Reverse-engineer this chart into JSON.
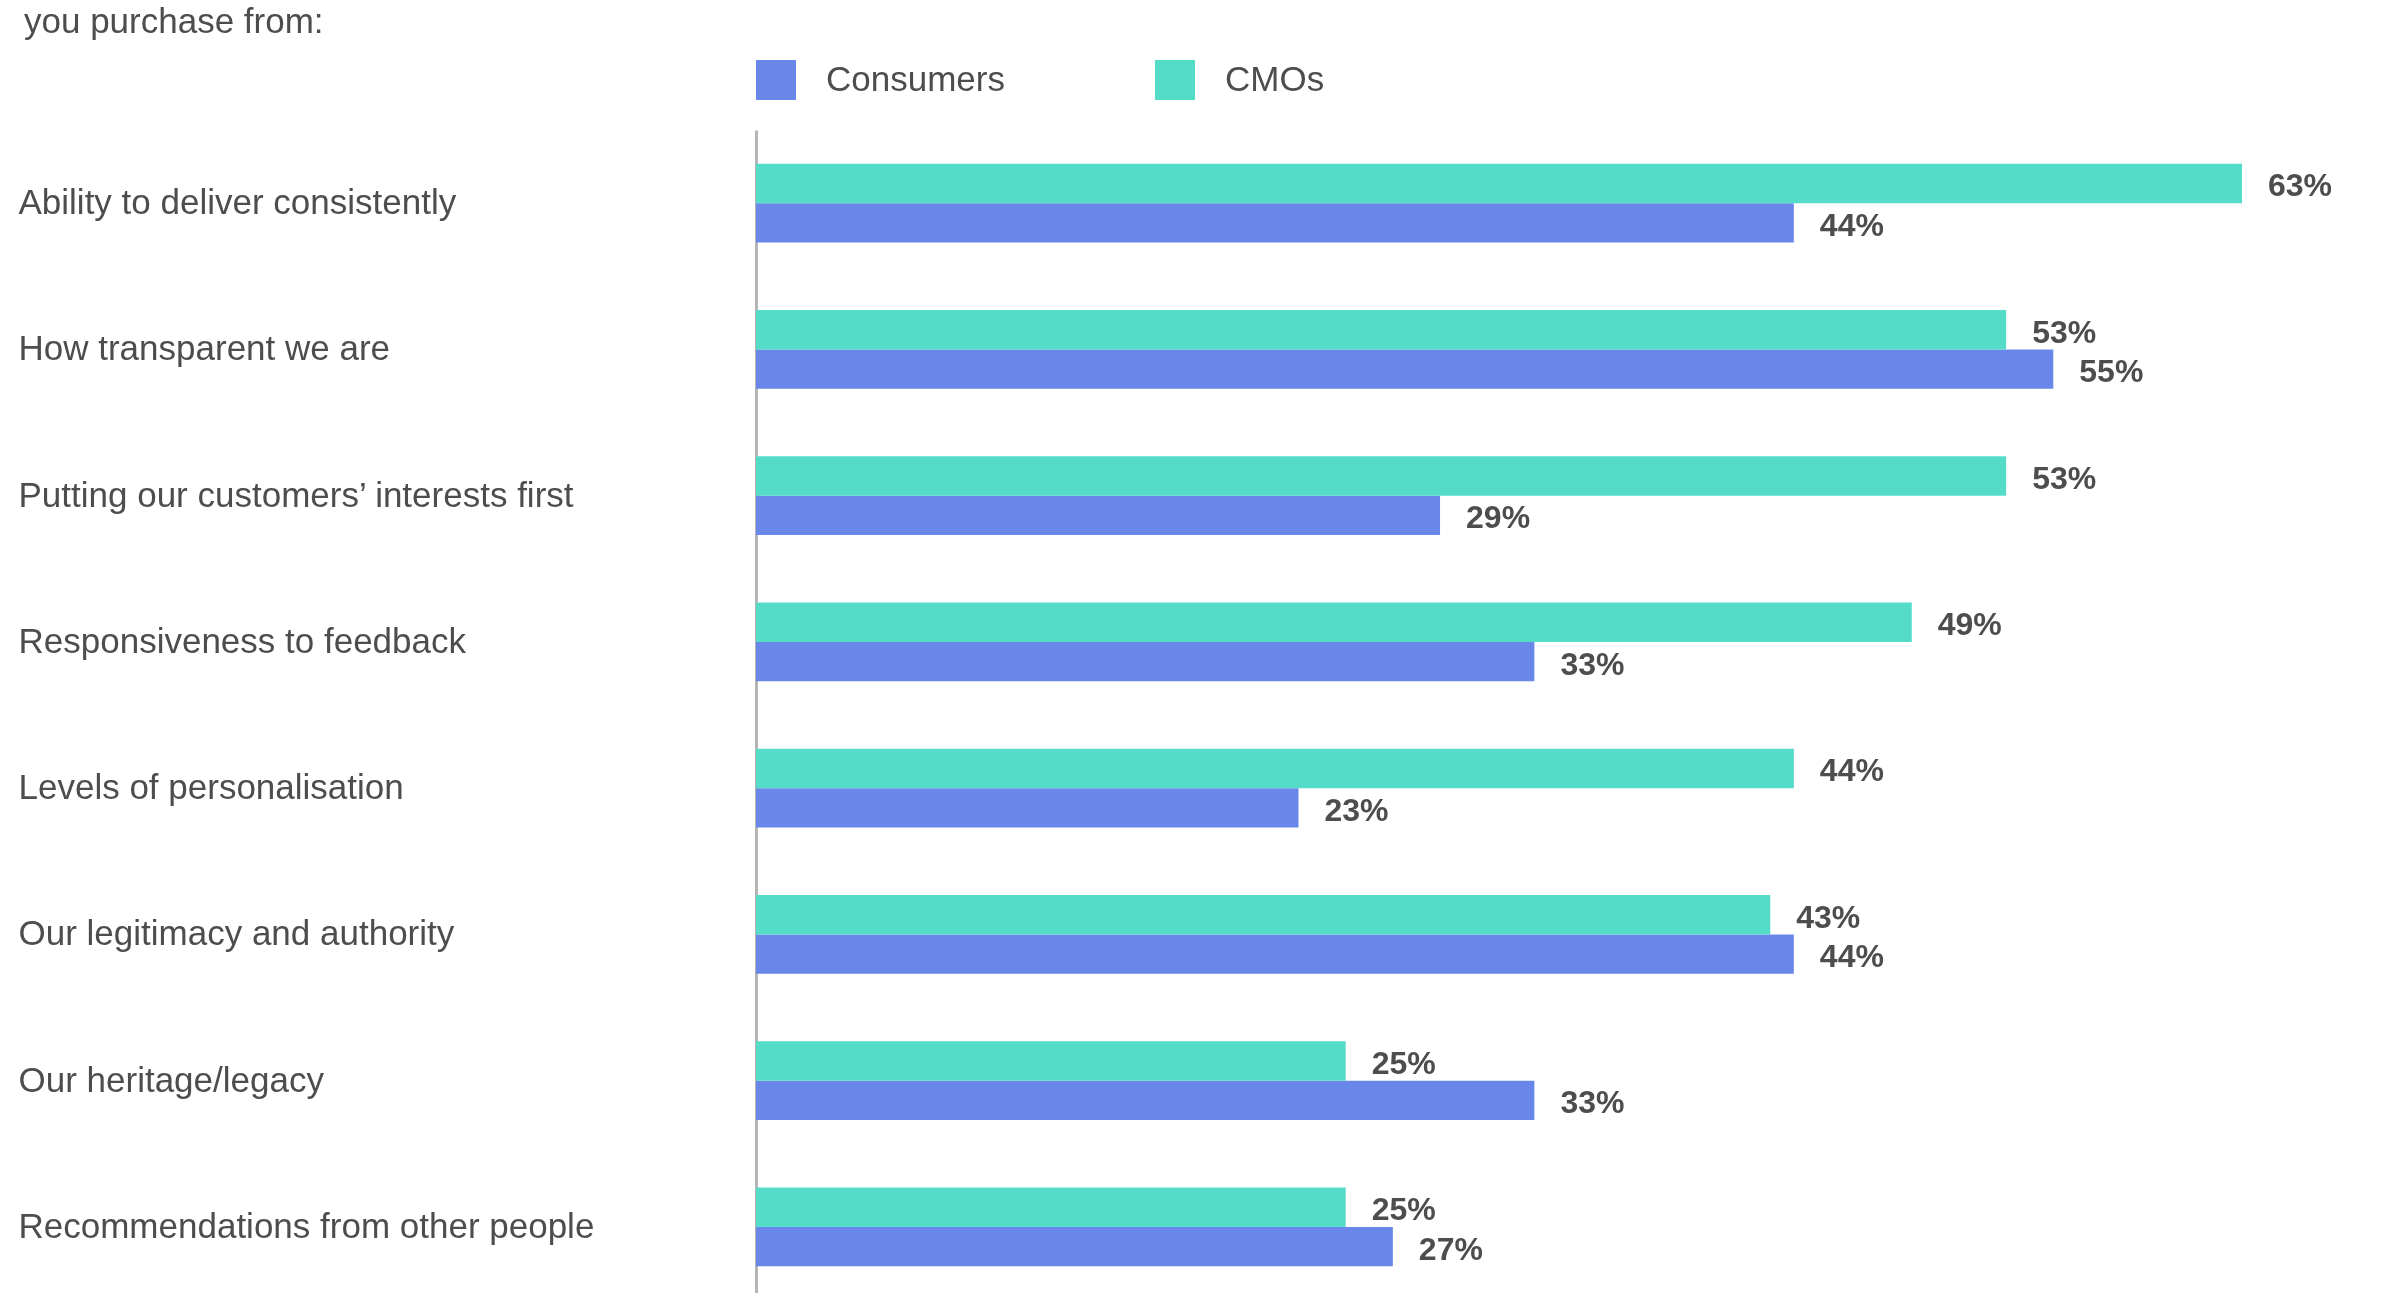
{
  "chart_data": {
    "type": "bar",
    "orientation": "horizontal",
    "title": "you purchase from:",
    "categories": [
      "Ability to deliver consistently",
      "How transparent we are",
      "Putting our customers’ interests first",
      "Responsiveness to feedback",
      "Levels of personalisation",
      "Our legitimacy and authority",
      "Our heritage/legacy",
      "Recommendations from other people"
    ],
    "series": [
      {
        "name": "Consumers",
        "color": "#6987e8",
        "values": [
          44,
          55,
          29,
          33,
          23,
          44,
          33,
          27
        ],
        "value_labels": [
          "44%",
          "55%",
          "29%",
          "33%",
          "23%",
          "44%",
          "33%",
          "27%"
        ]
      },
      {
        "name": "CMOs",
        "color": "#55dcc8",
        "values": [
          63,
          53,
          53,
          49,
          44,
          43,
          25,
          25
        ],
        "value_labels": [
          "63%",
          "53%",
          "53%",
          "49%",
          "44%",
          "43%",
          "25%",
          "25%"
        ]
      }
    ],
    "legend": "top"
  }
}
